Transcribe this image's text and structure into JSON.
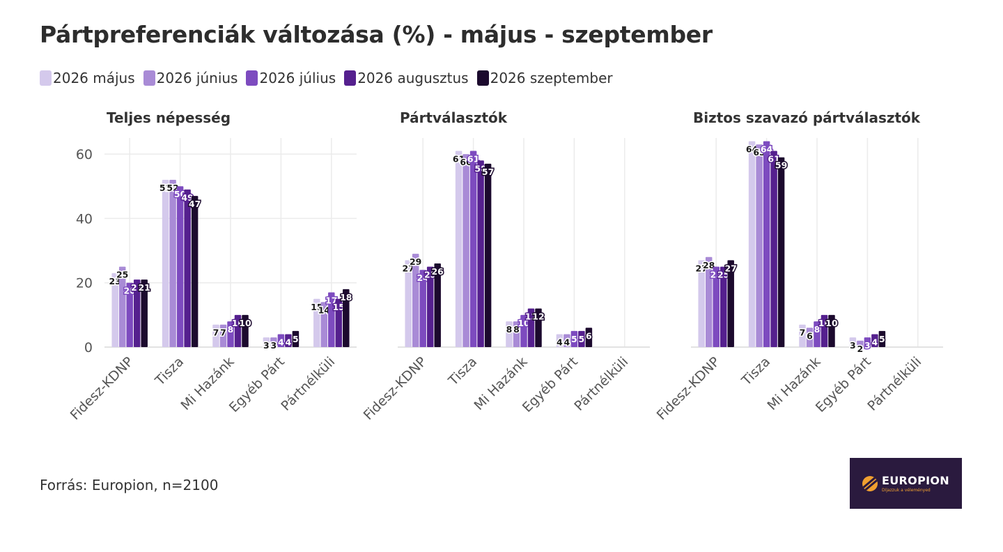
{
  "title": "Pártpreferenciák változása (%) - május - szeptember",
  "legend": [
    {
      "label": "2026 május",
      "color": "#d4c9ec"
    },
    {
      "label": "2026 június",
      "color": "#a98bd6"
    },
    {
      "label": "2026 július",
      "color": "#7d4bbf"
    },
    {
      "label": "2026 augusztus",
      "color": "#55208e"
    },
    {
      "label": "2026 szeptember",
      "color": "#1c0a2e"
    }
  ],
  "source": "Forrás: Europion, n=2100",
  "logo": {
    "name": "EUROPION",
    "tagline": "Díjazzuk a véleményed"
  },
  "chart_data": [
    {
      "type": "bar",
      "title": "Teljes népesség",
      "categories": [
        "Fidesz-KDNP",
        "Tisza",
        "Mi Hazánk",
        "Egyéb Párt",
        "Pártnélküli"
      ],
      "ylim": [
        0,
        65
      ],
      "yticks": [
        0,
        20,
        40,
        60
      ],
      "series": [
        {
          "name": "2026 május",
          "values": [
            23,
            52,
            7,
            3,
            15
          ]
        },
        {
          "name": "2026 június",
          "values": [
            25,
            52,
            7,
            3,
            14
          ]
        },
        {
          "name": "2026 július",
          "values": [
            20,
            50,
            8,
            4,
            17
          ]
        },
        {
          "name": "2026 augusztus",
          "values": [
            21,
            49,
            10,
            4,
            15
          ]
        },
        {
          "name": "2026 szeptember",
          "values": [
            21,
            47,
            10,
            5,
            18
          ]
        }
      ]
    },
    {
      "type": "bar",
      "title": "Pártválasztók",
      "categories": [
        "Fidesz-KDNP",
        "Tisza",
        "Mi Hazánk",
        "Egyéb Párt",
        "Pártnélküli"
      ],
      "ylim": [
        0,
        65
      ],
      "series": [
        {
          "name": "2026 május",
          "values": [
            27,
            61,
            8,
            4,
            null
          ]
        },
        {
          "name": "2026 június",
          "values": [
            29,
            60,
            8,
            4,
            null
          ]
        },
        {
          "name": "2026 július",
          "values": [
            24,
            61,
            10,
            5,
            null
          ]
        },
        {
          "name": "2026 augusztus",
          "values": [
            25,
            58,
            12,
            5,
            null
          ]
        },
        {
          "name": "2026 szeptember",
          "values": [
            26,
            57,
            12,
            6,
            null
          ]
        }
      ]
    },
    {
      "type": "bar",
      "title": "Biztos szavazó pártválasztók",
      "categories": [
        "Fidesz-KDNP",
        "Tisza",
        "Mi Hazánk",
        "Egyéb Párt",
        "Pártnélküli"
      ],
      "ylim": [
        0,
        65
      ],
      "series": [
        {
          "name": "2026 május",
          "values": [
            27,
            64,
            7,
            3,
            null
          ]
        },
        {
          "name": "2026 június",
          "values": [
            28,
            63,
            6,
            2,
            null
          ]
        },
        {
          "name": "2026 július",
          "values": [
            25,
            64,
            8,
            3,
            null
          ]
        },
        {
          "name": "2026 augusztus",
          "values": [
            25,
            61,
            10,
            4,
            null
          ]
        },
        {
          "name": "2026 szeptember",
          "values": [
            27,
            59,
            10,
            5,
            null
          ]
        }
      ]
    }
  ]
}
